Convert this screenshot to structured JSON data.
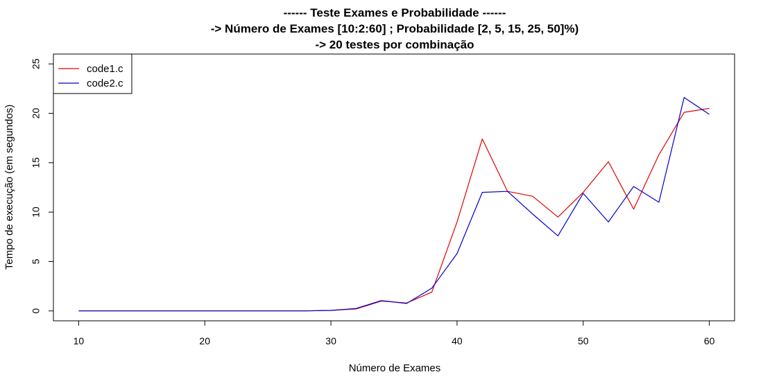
{
  "chart_data": {
    "type": "line",
    "title": [
      "------ Teste Exames e Probabilidade ------",
      "-> Número de Exames [10:2:60] ; Probabilidade [2, 5, 15, 25, 50]%)",
      "-> 20 testes por combinação"
    ],
    "xlabel": "Número de Exames",
    "ylabel": "Tempo de execução (em segundos)",
    "x": [
      10,
      12,
      14,
      16,
      18,
      20,
      22,
      24,
      26,
      28,
      30,
      32,
      34,
      36,
      38,
      40,
      42,
      44,
      46,
      48,
      50,
      52,
      54,
      56,
      58,
      60
    ],
    "series": [
      {
        "name": "code1.c",
        "color": "#e00000",
        "values": [
          0,
          0,
          0,
          0,
          0,
          0,
          0,
          0,
          0,
          0,
          0.05,
          0.2,
          1.0,
          0.8,
          1.9,
          9.0,
          17.4,
          12.1,
          11.6,
          9.5,
          12.0,
          15.1,
          10.3,
          15.8,
          20.1,
          20.5
        ]
      },
      {
        "name": "code2.c",
        "color": "#0000cc",
        "values": [
          0,
          0,
          0,
          0,
          0,
          0,
          0,
          0,
          0,
          0,
          0.05,
          0.25,
          1.05,
          0.75,
          2.3,
          5.8,
          12.0,
          12.1,
          9.8,
          7.6,
          11.9,
          9.0,
          12.6,
          11.0,
          21.6,
          19.9
        ]
      }
    ],
    "xticks": [
      10,
      20,
      30,
      40,
      50,
      60
    ],
    "yticks": [
      0,
      5,
      10,
      15,
      20,
      25
    ],
    "xlim": [
      8,
      62
    ],
    "ylim": [
      -1,
      26
    ],
    "legend_position": "top-left",
    "grid": false
  }
}
